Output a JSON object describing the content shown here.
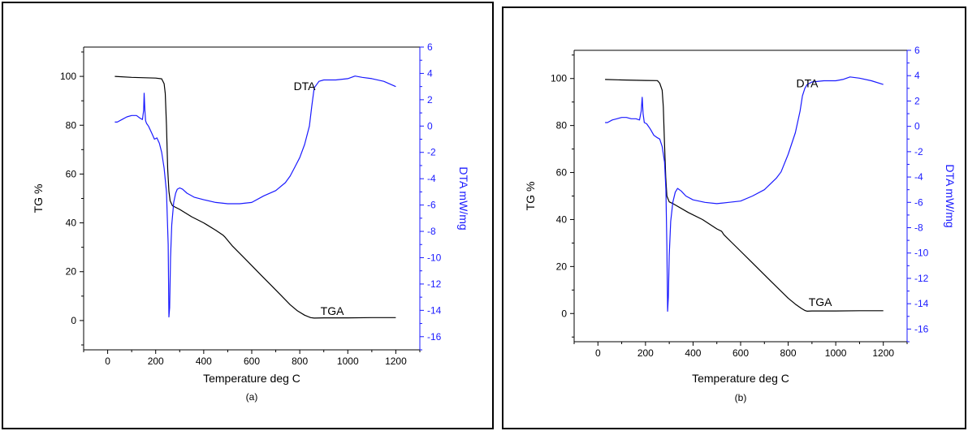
{
  "colors": {
    "tga": "#000000",
    "dta": "#1a1aff",
    "axis_left": "#000000",
    "axis_right": "#1a1aff"
  },
  "chart_data": [
    {
      "type": "line",
      "caption": "(a)",
      "xlabel": "Temperature deg C",
      "ylabel_left": "TG %",
      "ylabel_right": "DTA mW/mg",
      "xlim": [
        -100,
        1300
      ],
      "ylim_left": [
        -12,
        112
      ],
      "ylim_right": [
        -17,
        6
      ],
      "x_ticks": [
        0,
        200,
        400,
        600,
        800,
        1000,
        1200
      ],
      "y_left_ticks": [
        0,
        20,
        40,
        60,
        80,
        100
      ],
      "y_right_ticks": [
        6,
        4,
        2,
        0,
        -2,
        -4,
        -6,
        -8,
        -10,
        -12,
        -14,
        -16
      ],
      "annotations": [
        {
          "text": "DTA",
          "x": 820,
          "y_axis": "left",
          "y": 96
        },
        {
          "text": "TGA",
          "x": 935,
          "y_axis": "left",
          "y": 4
        }
      ],
      "series": [
        {
          "name": "TGA",
          "axis": "left",
          "x": [
            30,
            100,
            200,
            225,
            235,
            240,
            245,
            250,
            255,
            260,
            270,
            300,
            350,
            400,
            450,
            480,
            490,
            520,
            560,
            600,
            640,
            680,
            720,
            760,
            790,
            820,
            845,
            860,
            900,
            1000,
            1100,
            1200
          ],
          "y": [
            100,
            99.6,
            99.3,
            99,
            97,
            93,
            80,
            62,
            53,
            49,
            47,
            45.5,
            42.5,
            40,
            37,
            35,
            34,
            30.5,
            26.5,
            22.5,
            18.5,
            14.5,
            10.5,
            6.5,
            4,
            2.2,
            1.2,
            1,
            1.1,
            1.1,
            1.2,
            1.2
          ]
        },
        {
          "name": "DTA",
          "axis": "right",
          "x": [
            30,
            40,
            60,
            80,
            100,
            120,
            135,
            145,
            150,
            152,
            155,
            158,
            162,
            170,
            185,
            195,
            205,
            215,
            225,
            235,
            245,
            252,
            255,
            258,
            262,
            267,
            275,
            283,
            290,
            300,
            312,
            330,
            360,
            400,
            450,
            500,
            550,
            600,
            650,
            700,
            740,
            760,
            780,
            800,
            820,
            840,
            850,
            860,
            880,
            900,
            950,
            1000,
            1030,
            1060,
            1100,
            1150,
            1200
          ],
          "y": [
            0.3,
            0.3,
            0.5,
            0.7,
            0.8,
            0.8,
            0.6,
            0.5,
            1.2,
            2.5,
            1.2,
            0.4,
            0.2,
            0,
            -0.6,
            -1.0,
            -0.9,
            -1.3,
            -2.0,
            -3.2,
            -5.0,
            -9,
            -14.5,
            -13.8,
            -10,
            -7.5,
            -5.8,
            -5.1,
            -4.8,
            -4.7,
            -4.8,
            -5.1,
            -5.4,
            -5.6,
            -5.8,
            -5.9,
            -5.9,
            -5.8,
            -5.3,
            -4.9,
            -4.3,
            -3.8,
            -3.1,
            -2.4,
            -1.4,
            0,
            1.5,
            2.9,
            3.4,
            3.5,
            3.5,
            3.6,
            3.8,
            3.7,
            3.6,
            3.4,
            3.0
          ]
        }
      ]
    },
    {
      "type": "line",
      "caption": "(b)",
      "xlabel": "Temperature deg C",
      "ylabel_left": "TG %",
      "ylabel_right": "DTA mW/mg",
      "xlim": [
        -100,
        1300
      ],
      "ylim_left": [
        -12,
        112
      ],
      "ylim_right": [
        -17,
        6
      ],
      "x_ticks": [
        0,
        200,
        400,
        600,
        800,
        1000,
        1200
      ],
      "y_left_ticks": [
        0,
        20,
        40,
        60,
        80,
        100
      ],
      "y_right_ticks": [
        6,
        4,
        2,
        0,
        -2,
        -4,
        -6,
        -8,
        -10,
        -12,
        -14,
        -16
      ],
      "annotations": [
        {
          "text": "DTA",
          "x": 880,
          "y_axis": "left",
          "y": 98
        },
        {
          "text": "TGA",
          "x": 935,
          "y_axis": "left",
          "y": 5
        }
      ],
      "series": [
        {
          "name": "TGA",
          "axis": "left",
          "x": [
            30,
            100,
            200,
            250,
            260,
            270,
            275,
            280,
            285,
            290,
            300,
            320,
            380,
            440,
            500,
            520,
            530,
            560,
            600,
            640,
            680,
            720,
            760,
            800,
            830,
            855,
            870,
            880,
            900,
            1000,
            1100,
            1200
          ],
          "y": [
            99.6,
            99.4,
            99.2,
            99.1,
            98,
            95,
            88,
            72,
            58,
            50,
            47.5,
            46.5,
            43,
            40,
            36,
            35,
            33.5,
            30.5,
            26.5,
            22.5,
            18.5,
            14.5,
            10.5,
            6.5,
            4,
            2.2,
            1.3,
            1,
            1.1,
            1.1,
            1.2,
            1.2
          ]
        },
        {
          "name": "DTA",
          "axis": "right",
          "x": [
            30,
            40,
            60,
            80,
            100,
            120,
            140,
            160,
            175,
            182,
            186,
            190,
            195,
            205,
            220,
            235,
            250,
            260,
            270,
            280,
            286,
            290,
            293,
            296,
            300,
            306,
            315,
            325,
            335,
            350,
            370,
            400,
            450,
            500,
            550,
            600,
            650,
            700,
            750,
            770,
            800,
            830,
            850,
            860,
            870,
            880,
            890,
            900,
            950,
            1000,
            1030,
            1060,
            1100,
            1150,
            1200
          ],
          "y": [
            0.3,
            0.3,
            0.5,
            0.6,
            0.7,
            0.7,
            0.6,
            0.6,
            0.5,
            1.2,
            2.3,
            1.0,
            0.3,
            0.2,
            -0.2,
            -0.7,
            -0.9,
            -1.0,
            -1.6,
            -2.8,
            -5.0,
            -9.5,
            -14.6,
            -13.5,
            -10.2,
            -7.5,
            -6.0,
            -5.2,
            -4.9,
            -5.1,
            -5.5,
            -5.8,
            -6.0,
            -6.1,
            -6.0,
            -5.9,
            -5.5,
            -5.0,
            -4.1,
            -3.6,
            -2.2,
            -0.5,
            1.2,
            2.4,
            3.0,
            3.3,
            3.4,
            3.5,
            3.6,
            3.6,
            3.7,
            3.9,
            3.8,
            3.6,
            3.3
          ]
        }
      ]
    }
  ]
}
